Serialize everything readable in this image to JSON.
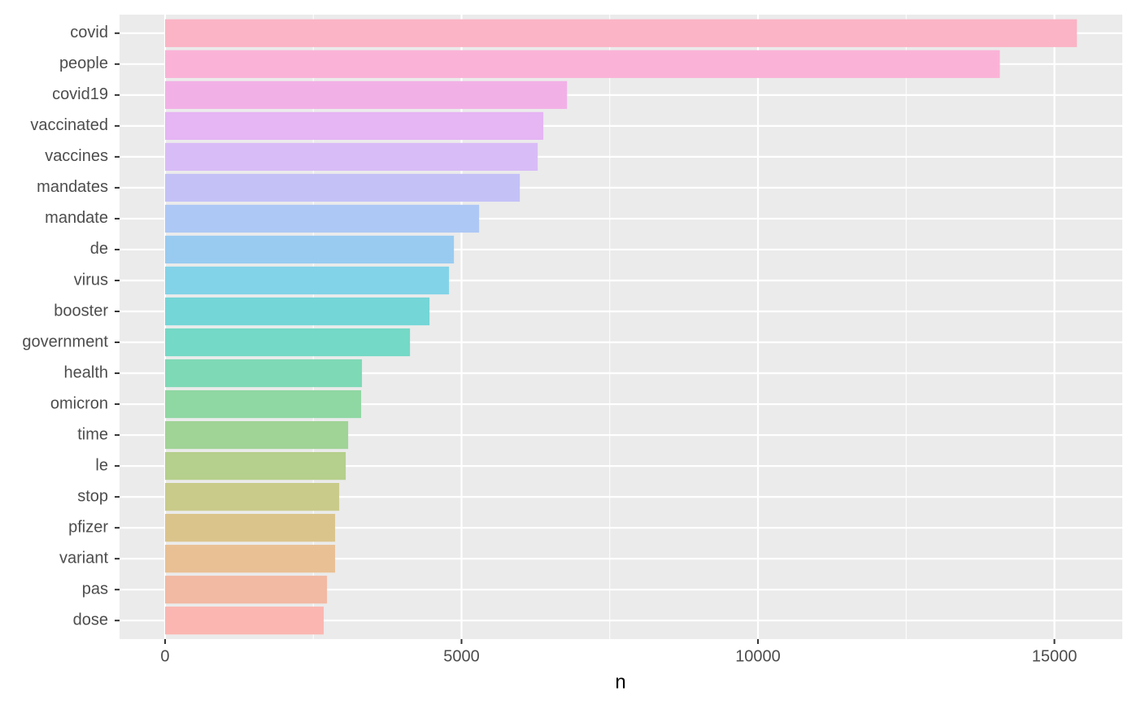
{
  "chart_data": {
    "type": "barh",
    "x_label": "n",
    "categories": [
      "covid",
      "people",
      "covid19",
      "vaccinated",
      "vaccines",
      "mandates",
      "mandate",
      "de",
      "virus",
      "booster",
      "government",
      "health",
      "omicron",
      "time",
      "le",
      "stop",
      "pfizer",
      "variant",
      "pas",
      "dose"
    ],
    "values": [
      15380,
      14080,
      6780,
      6380,
      6285,
      5983,
      5297,
      4872,
      4789,
      4460,
      4131,
      3321,
      3307,
      3088,
      3047,
      2937,
      2868,
      2868,
      2731,
      2676
    ],
    "colors": [
      "#fbb4c5",
      "#fab3d7",
      "#f2b1e6",
      "#e5b5f4",
      "#d8bcf7",
      "#c4c1f7",
      "#aec8f5",
      "#99cbf1",
      "#82d3e8",
      "#74d6d7",
      "#74d9c6",
      "#7ed9b6",
      "#8fd7a3",
      "#a0d396",
      "#b5cf8c",
      "#c9cb8a",
      "#dbc48b",
      "#e9c094",
      "#f2b9a3",
      "#fbb6b1"
    ],
    "xlim": [
      -768,
      16145
    ],
    "xticks": [
      0,
      5000,
      10000,
      15000
    ],
    "x_minor_ticks": [
      2500,
      7500,
      12500
    ],
    "grid": true
  }
}
